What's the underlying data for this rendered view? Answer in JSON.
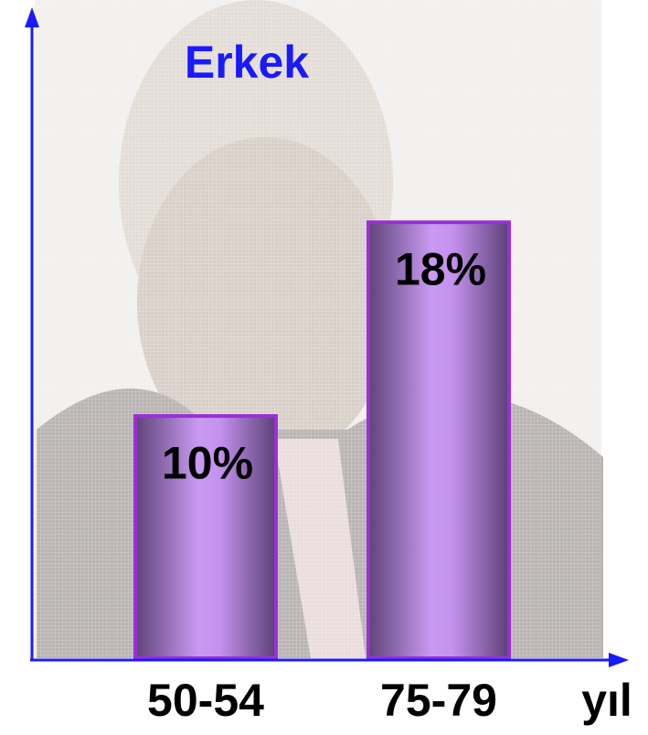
{
  "chart_data": {
    "type": "bar",
    "title": "Erkek",
    "categories": [
      "50-54",
      "75-79"
    ],
    "values": [
      10,
      18
    ],
    "value_labels": [
      "10%",
      "18%"
    ],
    "x_label": "yıl",
    "color": "#b98ae6",
    "ylim": [
      0,
      26.8
    ]
  }
}
